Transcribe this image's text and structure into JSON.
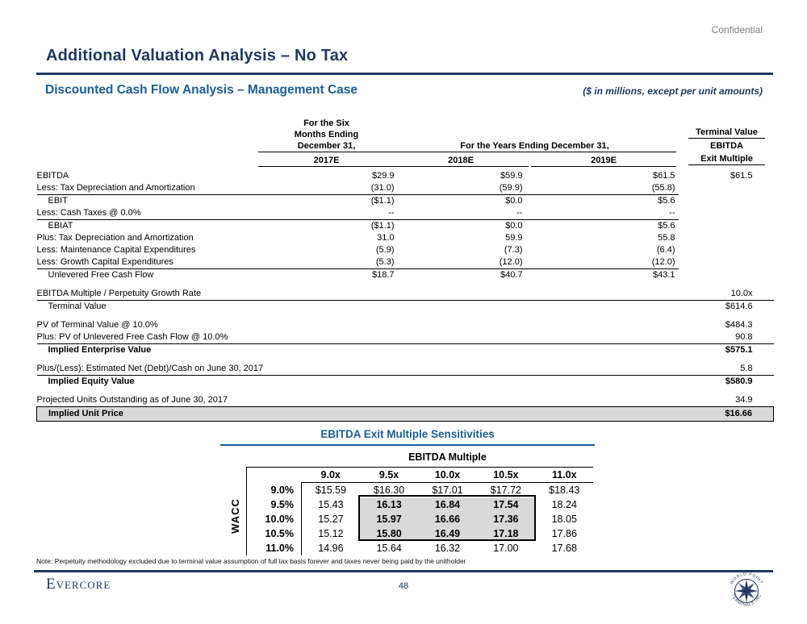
{
  "colors": {
    "navy": "#1F3864",
    "blue": "#1A5E96",
    "confidential_gray": "#7F7F7F",
    "highlight_gray": "#D9D9D9"
  },
  "page": {
    "confidential": "Confidential",
    "title": "Additional Valuation Analysis – No Tax",
    "subtitle": "Discounted Cash Flow Analysis – Management Case",
    "units_note": "($ in millions, except per unit amounts)",
    "note": "Note: Perpetuity methodology excluded due to terminal value assumption of full tax basis forever and taxes never being paid by the unitholder",
    "page_number": "48",
    "brand": "Evercore",
    "logo_text_top": "WORLD POINT",
    "logo_text_bottom": "TERMINALS INC"
  },
  "dcf_table": {
    "headers": {
      "six_months_line1": "For the Six",
      "six_months_line2": "Months Ending",
      "six_months_line3": "December 31,",
      "years_span": "For the Years Ending December 31,",
      "col_2017": "2017E",
      "col_2018": "2018E",
      "col_2019": "2019E",
      "terminal_line1": "Terminal Value",
      "terminal_line2": "EBITDA",
      "terminal_line3": "Exit Multiple"
    },
    "rows": [
      {
        "label": "EBITDA",
        "c2017": "$29.9",
        "c2018": "$59.9",
        "c2019": "$61.5",
        "terminal": "$61.5"
      },
      {
        "label": "Less: Tax Depreciation and Amortization",
        "c2017": "(31.0)",
        "c2018": "(59.9)",
        "c2019": "(55.8)",
        "rule": "partial"
      },
      {
        "label": "EBIT",
        "indent": true,
        "c2017": "($1.1)",
        "c2018": "$0.0",
        "c2019": "$5.6"
      },
      {
        "label": "Less: Cash Taxes @ 0.0%",
        "c2017": "--",
        "c2018": "--",
        "c2019": "--",
        "rule": "partial"
      },
      {
        "label": "EBIAT",
        "indent": true,
        "c2017": "($1.1)",
        "c2018": "$0.0",
        "c2019": "$5.6"
      },
      {
        "label": "Plus: Tax Depreciation and Amortization",
        "c2017": "31.0",
        "c2018": "59.9",
        "c2019": "55.8"
      },
      {
        "label": "Less: Maintenance Capital Expenditures",
        "c2017": "(5.9)",
        "c2018": "(7.3)",
        "c2019": "(6.4)"
      },
      {
        "label": "Less: Growth Capital Expenditures",
        "c2017": "(5.3)",
        "c2018": "(12.0)",
        "c2019": "(12.0)",
        "rule": "partial"
      },
      {
        "label": "Unlevered Free Cash Flow",
        "indent": true,
        "c2017": "$18.7",
        "c2018": "$40.7",
        "c2019": "$43.1"
      },
      {
        "spacer": true
      },
      {
        "label": "EBITDA Multiple / Perpetuity Growth Rate",
        "terminal": "10.0x",
        "rule": "full"
      },
      {
        "label": "Terminal Value",
        "indent": true,
        "terminal": "$614.6"
      },
      {
        "spacer": true
      },
      {
        "label": "PV of Terminal Value @ 10.0%",
        "terminal": "$484.3"
      },
      {
        "label": "Plus: PV of Unlevered Free Cash Flow @ 10.0%",
        "terminal": "90.8",
        "rule": "full"
      },
      {
        "label": "Implied Enterprise Value",
        "indent": true,
        "bold": true,
        "terminal": "$575.1"
      },
      {
        "spacer": true
      },
      {
        "label": "Plus/(Less): Estimated Net (Debt)/Cash on June 30, 2017",
        "terminal": "5.8",
        "rule": "full"
      },
      {
        "label": "Implied Equity Value",
        "indent": true,
        "bold": true,
        "terminal": "$580.9"
      },
      {
        "spacer": true
      },
      {
        "label": "Projected Units Outstanding as of June 30, 2017",
        "terminal": "34.9",
        "rule": "full"
      },
      {
        "label": "Implied Unit Price",
        "indent": true,
        "bold": true,
        "highlight": true,
        "terminal": "$16.66"
      }
    ]
  },
  "sensitivity": {
    "title": "EBITDA Exit Multiple Sensitivities",
    "col_group_label": "EBITDA Multiple",
    "row_group_label": "WACC",
    "col_headers": [
      "9.0x",
      "9.5x",
      "10.0x",
      "10.5x",
      "11.0x"
    ],
    "rows": [
      {
        "wacc": "9.0%",
        "values": [
          "$15.59",
          "$16.30",
          "$17.01",
          "$17.72",
          "$18.43"
        ]
      },
      {
        "wacc": "9.5%",
        "values": [
          "15.43",
          "16.13",
          "16.84",
          "17.54",
          "18.24"
        ]
      },
      {
        "wacc": "10.0%",
        "values": [
          "15.27",
          "15.97",
          "16.66",
          "17.36",
          "18.05"
        ]
      },
      {
        "wacc": "10.5%",
        "values": [
          "15.12",
          "15.80",
          "16.49",
          "17.18",
          "17.86"
        ]
      },
      {
        "wacc": "11.0%",
        "values": [
          "14.96",
          "15.64",
          "16.32",
          "17.00",
          "17.68"
        ]
      }
    ],
    "highlight": {
      "rows": [
        1,
        2,
        3
      ],
      "cols": [
        1,
        2,
        3
      ]
    }
  }
}
